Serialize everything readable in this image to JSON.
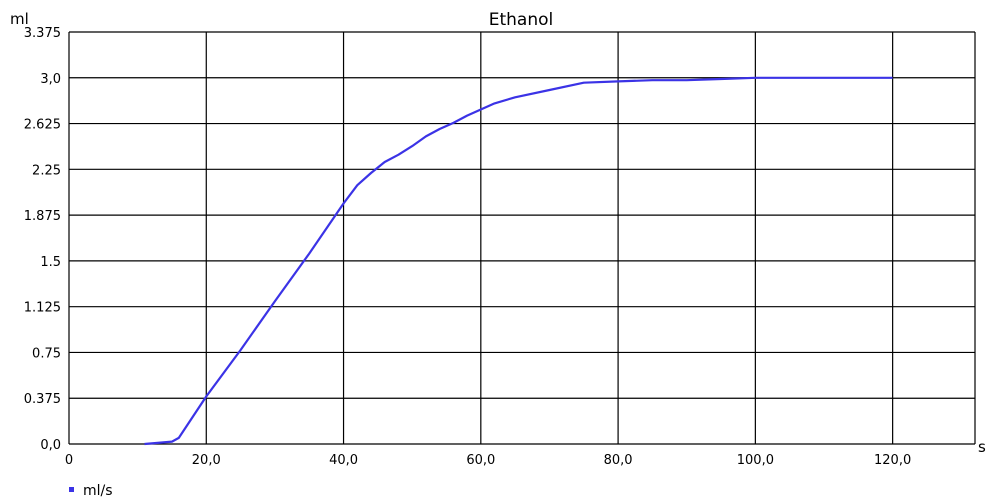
{
  "chart_data": {
    "type": "line",
    "title": "Ethanol",
    "ylabel": "ml",
    "xlabel": "s",
    "xlim": [
      0,
      132
    ],
    "ylim": [
      0,
      3.375
    ],
    "x_ticks": [
      0,
      20,
      40,
      60,
      80,
      100,
      120
    ],
    "x_tick_labels": [
      "0",
      "20,0",
      "40,0",
      "60,0",
      "80,0",
      "100,0",
      "120,0"
    ],
    "y_ticks": [
      0,
      0.375,
      0.75,
      1.125,
      1.5,
      1.875,
      2.25,
      2.625,
      3.0,
      3.375
    ],
    "y_tick_labels": [
      "0,0",
      "0.375",
      "0.75",
      "1.125",
      "1.5",
      "1.875",
      "2.25",
      "2.625",
      "3,0",
      "3.375"
    ],
    "grid": true,
    "legend_position": "bottom-left",
    "series": [
      {
        "name": "ml/s",
        "color": "#3b33e6",
        "x": [
          11,
          15,
          16,
          20,
          25,
          30,
          35,
          40,
          42,
          44,
          46,
          48,
          50,
          52,
          54,
          56,
          58,
          60,
          62,
          65,
          70,
          75,
          80,
          85,
          90,
          95,
          100,
          105,
          110,
          115,
          120
        ],
        "y": [
          0.0,
          0.02,
          0.05,
          0.39,
          0.77,
          1.17,
          1.56,
          1.97,
          2.12,
          2.22,
          2.31,
          2.37,
          2.44,
          2.52,
          2.58,
          2.63,
          2.69,
          2.74,
          2.79,
          2.84,
          2.9,
          2.96,
          2.97,
          2.98,
          2.98,
          2.99,
          3.0,
          3.0,
          3.0,
          3.0,
          3.0
        ]
      }
    ]
  }
}
